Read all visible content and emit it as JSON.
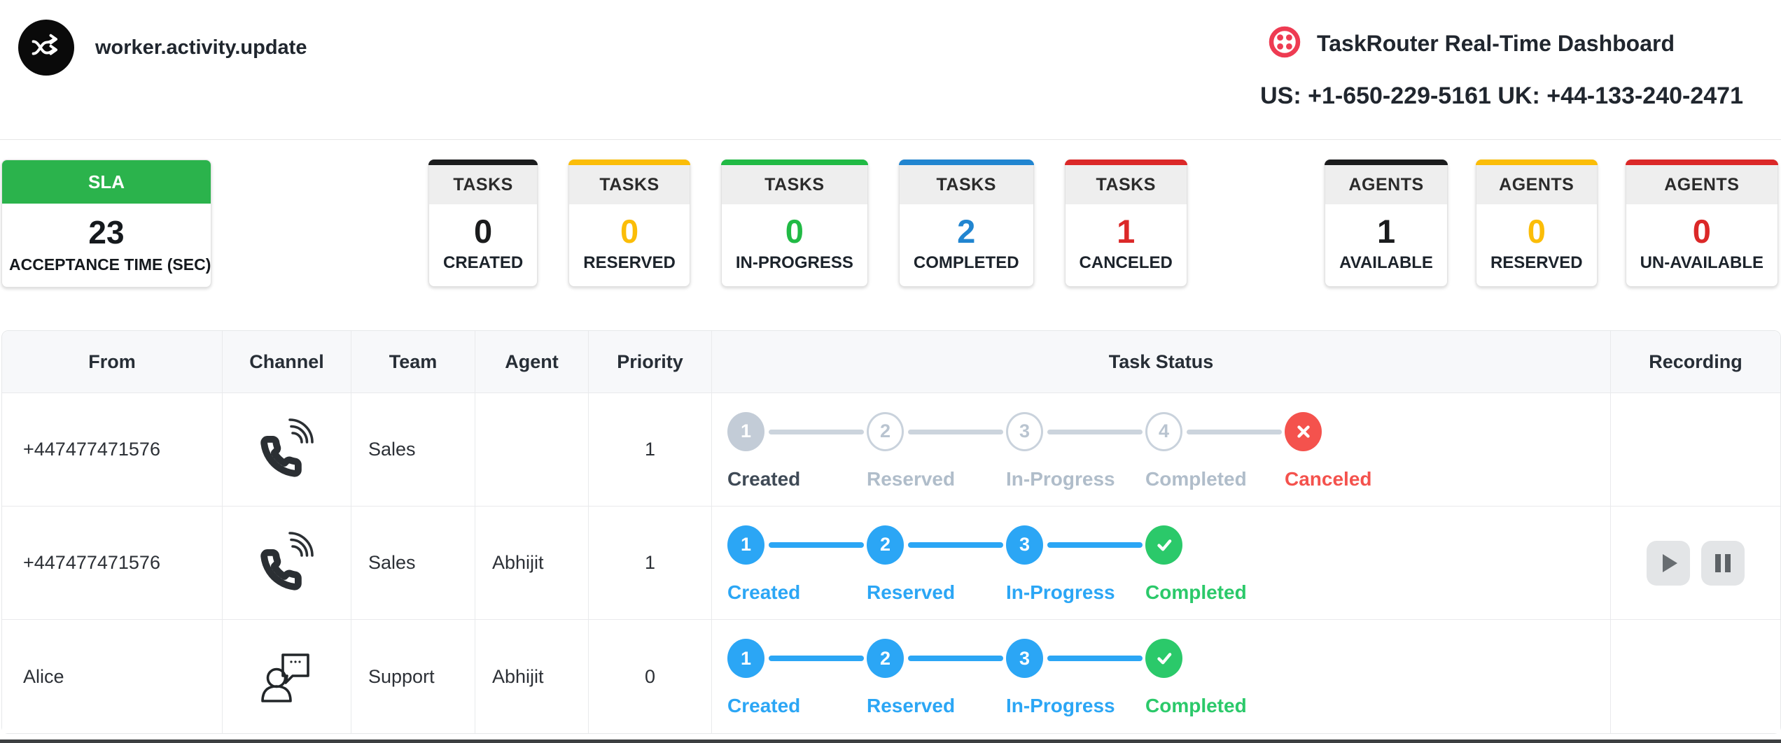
{
  "header": {
    "event_label": "worker.activity.update",
    "title": "TaskRouter Real-Time Dashboard",
    "phones": "US: +1-650-229-5161 UK: +44-133-240-2471",
    "brand_color": "#ee3b52"
  },
  "stats": {
    "sla": {
      "header": "SLA",
      "value": "23",
      "label": "ACCEPTANCE TIME (SEC)",
      "color": "#2bb34c"
    },
    "tasks": [
      {
        "header": "TASKS",
        "value": "0",
        "label": "CREATED",
        "color": "#1b1c1d"
      },
      {
        "header": "TASKS",
        "value": "0",
        "label": "RESERVED",
        "color": "#fbbd08"
      },
      {
        "header": "TASKS",
        "value": "0",
        "label": "IN-PROGRESS",
        "color": "#21ba45"
      },
      {
        "header": "TASKS",
        "value": "2",
        "label": "COMPLETED",
        "color": "#2185d0"
      },
      {
        "header": "TASKS",
        "value": "1",
        "label": "CANCELED",
        "color": "#db2828"
      }
    ],
    "agents": [
      {
        "header": "AGENTS",
        "value": "1",
        "label": "AVAILABLE",
        "color": "#1b1c1d"
      },
      {
        "header": "AGENTS",
        "value": "0",
        "label": "RESERVED",
        "color": "#fbbd08"
      },
      {
        "header": "AGENTS",
        "value": "0",
        "label": "UN-AVAILABLE",
        "color": "#db2828"
      }
    ]
  },
  "table": {
    "headers": [
      "From",
      "Channel",
      "Team",
      "Agent",
      "Priority",
      "Task Status",
      "Recording"
    ],
    "stepper_palette": {
      "done_gray": "#c3ccd7",
      "outline": "#c9d2dc",
      "muted_label": "#b0bdca",
      "dark_label": "#3f4a56",
      "blue": "#2ba6f5",
      "green": "#2bc96a",
      "red": "#f4524d"
    },
    "rows": [
      {
        "from": "+447477471576",
        "channel": "phone",
        "team": "Sales",
        "agent": "",
        "priority": "1",
        "connector": "gray",
        "recording": false,
        "steps": [
          {
            "num": "1",
            "label": "Created",
            "style": "gray"
          },
          {
            "num": "2",
            "label": "Reserved",
            "style": "outline"
          },
          {
            "num": "3",
            "label": "In-Progress",
            "style": "outline"
          },
          {
            "num": "4",
            "label": "Completed",
            "style": "outline"
          },
          {
            "num": "x",
            "label": "Canceled",
            "style": "red"
          }
        ]
      },
      {
        "from": "+447477471576",
        "channel": "phone",
        "team": "Sales",
        "agent": "Abhijit",
        "priority": "1",
        "connector": "blue",
        "recording": true,
        "steps": [
          {
            "num": "1",
            "label": "Created",
            "style": "blue"
          },
          {
            "num": "2",
            "label": "Reserved",
            "style": "blue"
          },
          {
            "num": "3",
            "label": "In-Progress",
            "style": "blue"
          },
          {
            "num": "check",
            "label": "Completed",
            "style": "green"
          }
        ]
      },
      {
        "from": "Alice",
        "channel": "chat",
        "team": "Support",
        "agent": "Abhijit",
        "priority": "0",
        "connector": "blue",
        "recording": false,
        "steps": [
          {
            "num": "1",
            "label": "Created",
            "style": "blue"
          },
          {
            "num": "2",
            "label": "Reserved",
            "style": "blue"
          },
          {
            "num": "3",
            "label": "In-Progress",
            "style": "blue"
          },
          {
            "num": "check",
            "label": "Completed",
            "style": "green"
          }
        ]
      }
    ]
  },
  "icons": {
    "shuffle": "crossing-arrows",
    "twilio": "ring-with-4-dots",
    "phone": "handset-with-sound-waves",
    "chat": "person-with-speech-bubble",
    "play": "triangle-right",
    "pause": "double-bars",
    "canceled": "x-mark",
    "completed": "check-mark"
  }
}
